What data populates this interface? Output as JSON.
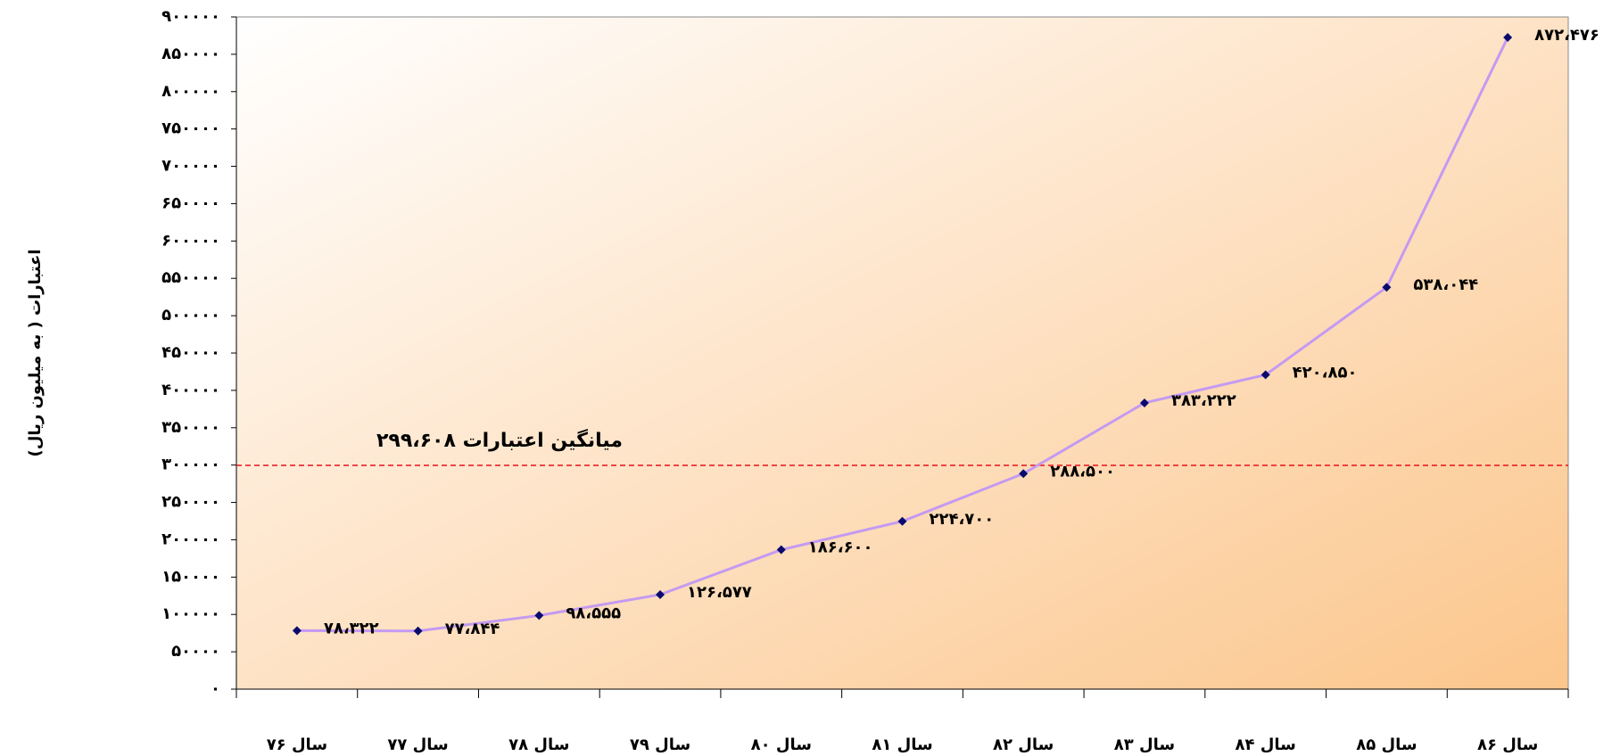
{
  "chart_data": {
    "type": "line",
    "y_label": "اعتبارات ( به میلیون ریال)",
    "categories": [
      "سال ۷۶",
      "سال ۷۷",
      "سال ۷۸",
      "سال ۷۹",
      "سال ۸۰",
      "سال ۸۱",
      "سال ۸۲",
      "سال ۸۳",
      "سال ۸۴",
      "سال ۸۵",
      "سال ۸۶"
    ],
    "series": [
      {
        "color": "#c49af2",
        "marker_color": "#0a0a6e",
        "values": [
          78322,
          77844,
          98555,
          126577,
          186600,
          224700,
          288500,
          383222,
          420850,
          538044,
          872476
        ],
        "value_labels": [
          "۷۸،۳۲۲",
          "۷۷،۸۴۴",
          "۹۸،۵۵۵",
          "۱۲۶،۵۷۷",
          "۱۸۶،۶۰۰",
          "۲۲۴،۷۰۰",
          "۲۸۸،۵۰۰",
          "۳۸۳،۲۲۲",
          "۴۲۰،۸۵۰",
          "۵۳۸،۰۴۴",
          "۸۷۲،۴۷۶"
        ]
      }
    ],
    "average": {
      "value": 299608,
      "label": "میانگین اعتبارات ۲۹۹،۶۰۸",
      "color": "#e8101a"
    },
    "ylim": [
      0,
      900000
    ],
    "yticks": [
      {
        "value": 0,
        "label": "۰"
      },
      {
        "value": 50000,
        "label": "۵۰۰۰۰"
      },
      {
        "value": 100000,
        "label": "۱۰۰۰۰۰"
      },
      {
        "value": 150000,
        "label": "۱۵۰۰۰۰"
      },
      {
        "value": 200000,
        "label": "۲۰۰۰۰۰"
      },
      {
        "value": 250000,
        "label": "۲۵۰۰۰۰"
      },
      {
        "value": 300000,
        "label": "۳۰۰۰۰۰"
      },
      {
        "value": 350000,
        "label": "۳۵۰۰۰۰"
      },
      {
        "value": 400000,
        "label": "۴۰۰۰۰۰"
      },
      {
        "value": 450000,
        "label": "۴۵۰۰۰۰"
      },
      {
        "value": 500000,
        "label": "۵۰۰۰۰۰"
      },
      {
        "value": 550000,
        "label": "۵۵۰۰۰۰"
      },
      {
        "value": 600000,
        "label": "۶۰۰۰۰۰"
      },
      {
        "value": 650000,
        "label": "۶۵۰۰۰۰"
      },
      {
        "value": 700000,
        "label": "۷۰۰۰۰۰"
      },
      {
        "value": 750000,
        "label": "۷۵۰۰۰۰"
      },
      {
        "value": 800000,
        "label": "۸۰۰۰۰۰"
      },
      {
        "value": 850000,
        "label": "۸۵۰۰۰۰"
      },
      {
        "value": 900000,
        "label": "۹۰۰۰۰۰"
      }
    ]
  }
}
